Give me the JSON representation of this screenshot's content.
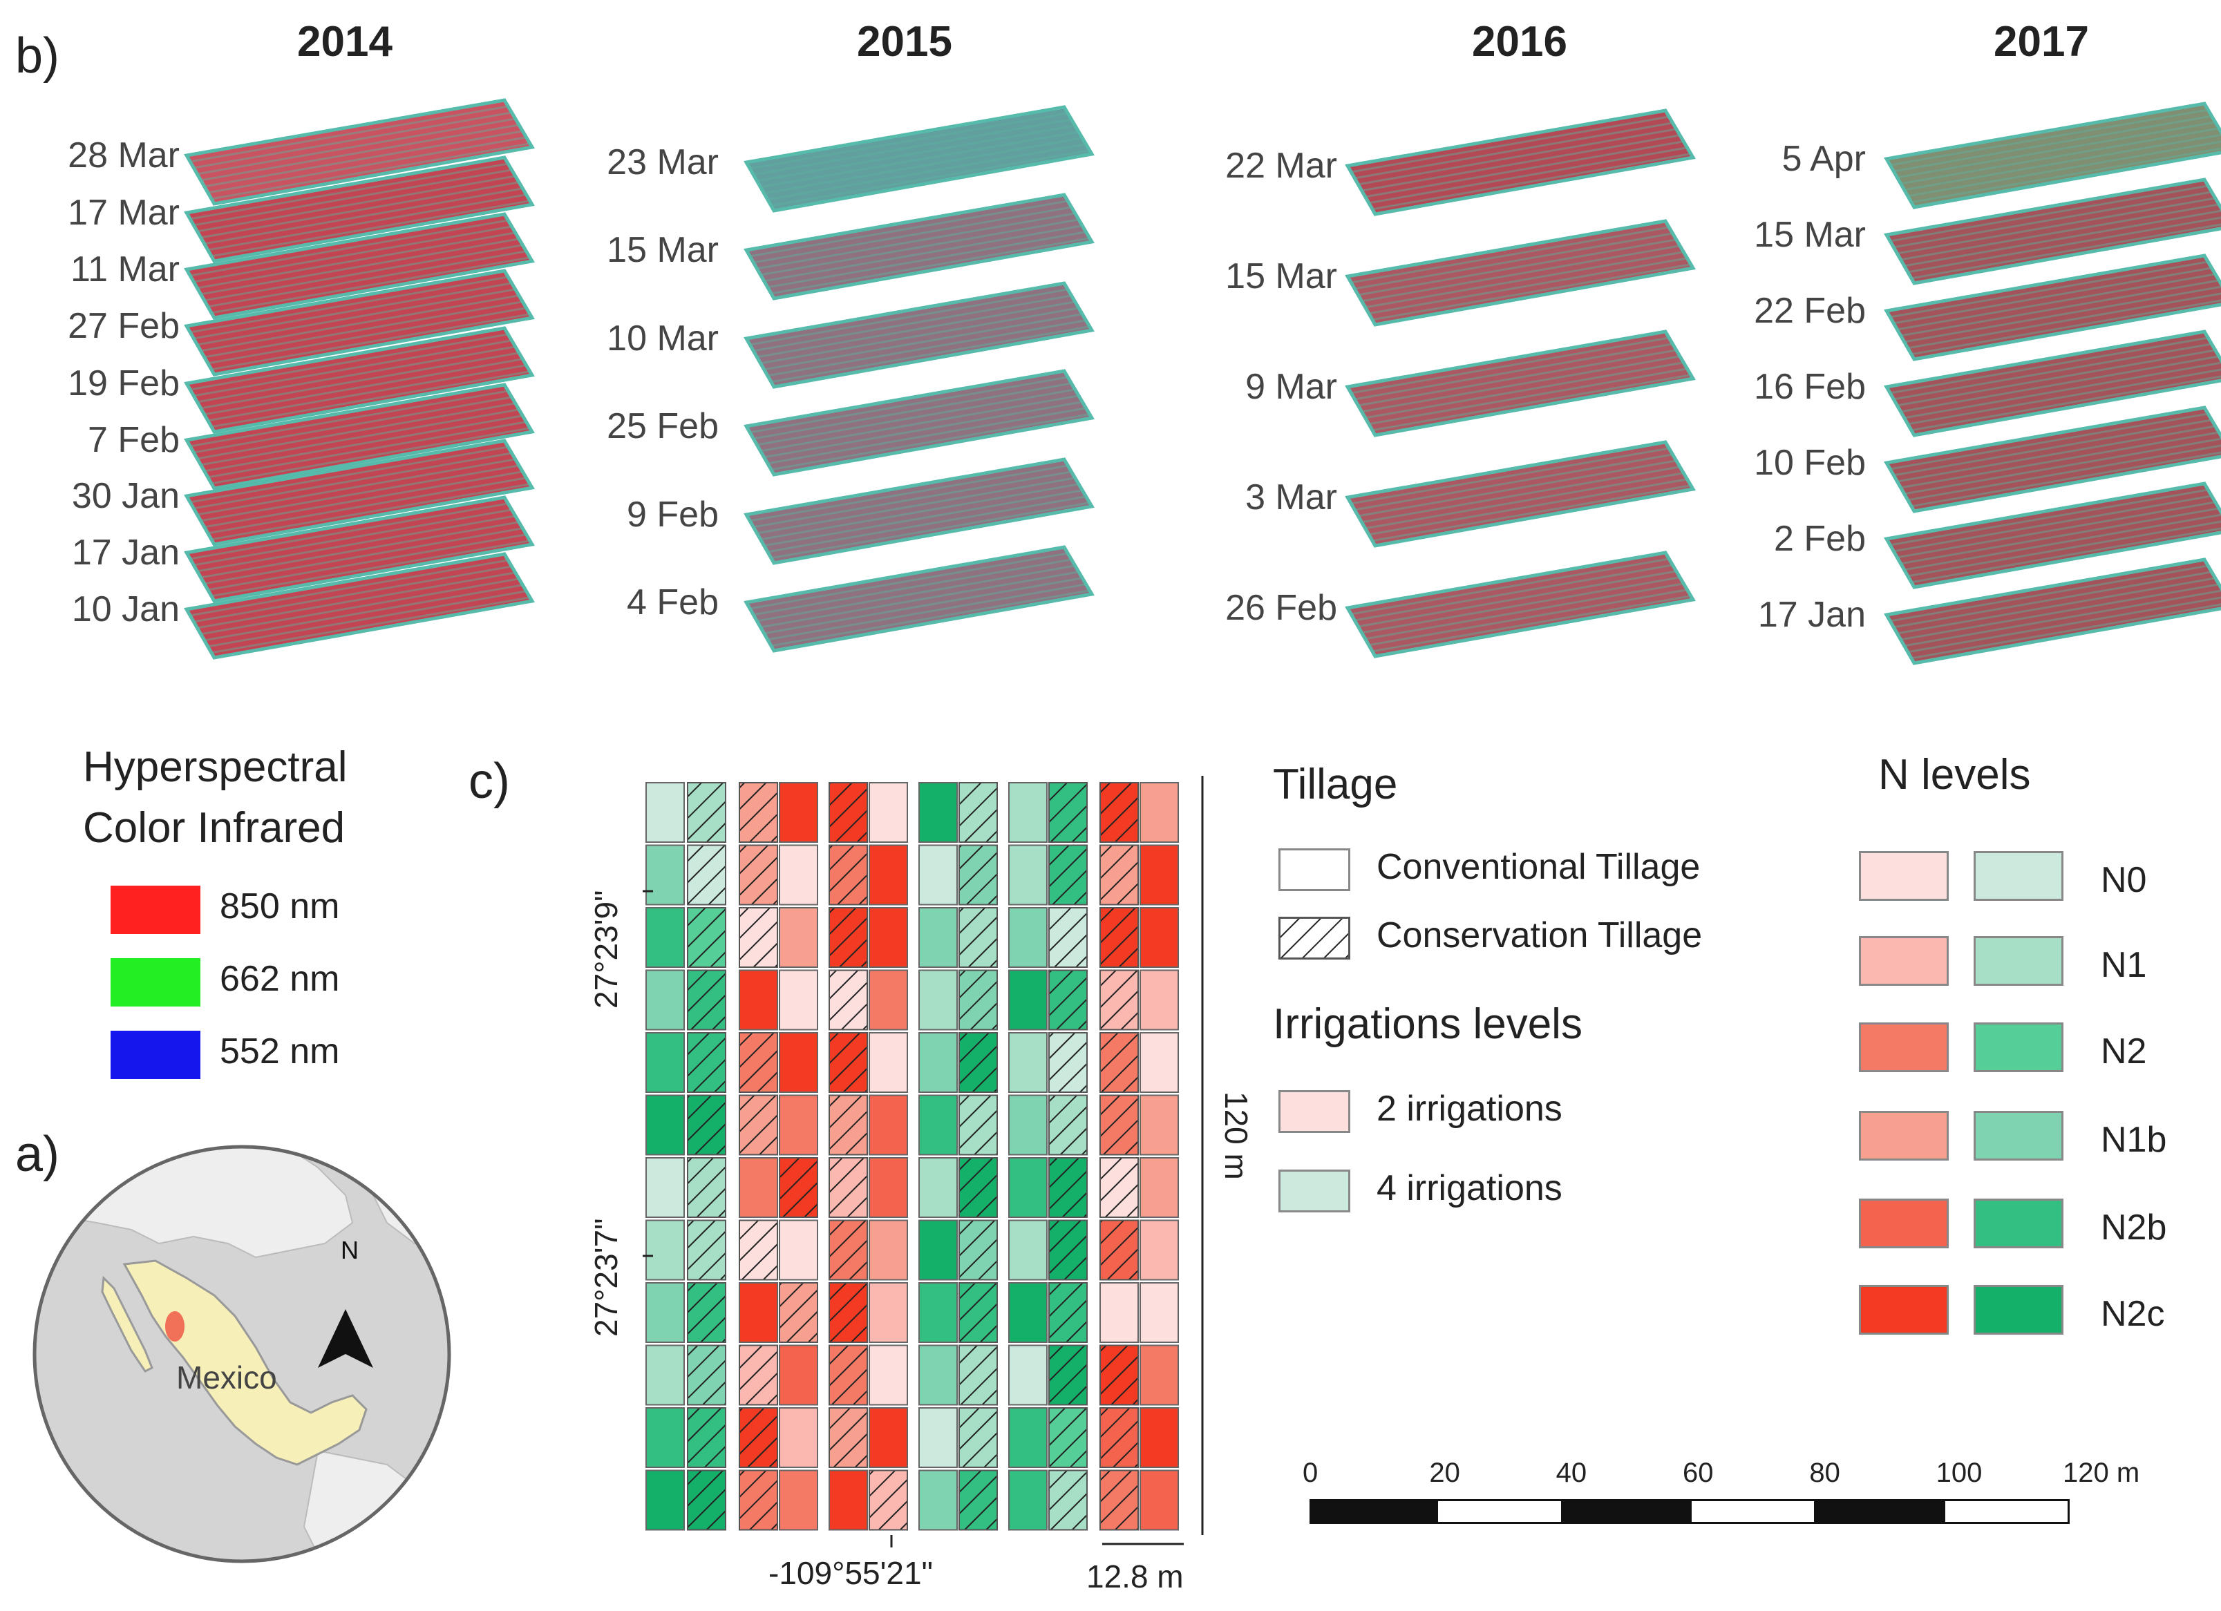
{
  "panels": {
    "a": "a)",
    "b": "b)",
    "c": "c)"
  },
  "years": [
    {
      "label": "2014",
      "dates": [
        "28 Mar",
        "17 Mar",
        "11 Mar",
        "27 Feb",
        "19 Feb",
        "7 Feb",
        "30 Jan",
        "17 Jan",
        "10 Jan"
      ]
    },
    {
      "label": "2015",
      "dates": [
        "23 Mar",
        "15 Mar",
        "10 Mar",
        "25 Feb",
        "9 Feb",
        "4 Feb"
      ]
    },
    {
      "label": "2016",
      "dates": [
        "22 Mar",
        "15 Mar",
        "9 Mar",
        "3 Mar",
        "26 Feb"
      ]
    },
    {
      "label": "2017",
      "dates": [
        "5 Apr",
        "15 Mar",
        "22 Feb",
        "16 Feb",
        "10 Feb",
        "2 Feb",
        "17 Jan"
      ]
    }
  ],
  "hyperspectral": {
    "title_line1": "Hyperspectral",
    "title_line2": "Color Infrared",
    "bands": [
      {
        "label": "850 nm",
        "color": "#ff2020"
      },
      {
        "label": "662 nm",
        "color": "#22ee22"
      },
      {
        "label": "552 nm",
        "color": "#1515ee"
      }
    ]
  },
  "map": {
    "country": "Mexico",
    "north": "N"
  },
  "plot": {
    "lat_top": "27°23'9\"",
    "lat_bottom": "27°23'7\"",
    "lon": "-109°55'21\"",
    "width_label": "12.8 m",
    "height_label": "120 m"
  },
  "tillage": {
    "title": "Tillage",
    "items": [
      {
        "label": "Conventional Tillage"
      },
      {
        "label": "Conservation Tillage"
      }
    ]
  },
  "irrigation": {
    "title": "Irrigations levels",
    "items": [
      {
        "label": "2 irrigations",
        "color": "#fde0de"
      },
      {
        "label": "4 irrigations",
        "color": "#cce9dd"
      }
    ]
  },
  "nlevels": {
    "title": "N levels",
    "items": [
      {
        "label": "N0",
        "red": "#fde0de",
        "green": "#cce9dd"
      },
      {
        "label": "N1",
        "red": "#fbb8b0",
        "green": "#a7dfc6"
      },
      {
        "label": "N2",
        "red": "#f57a66",
        "green": "#55cf97"
      },
      {
        "label": "N1b",
        "red": "#f8a090",
        "green": "#80d3b0"
      },
      {
        "label": "N2b",
        "red": "#f4634d",
        "green": "#34bf82"
      },
      {
        "label": "N2c",
        "red": "#f33a22",
        "green": "#14b06a"
      }
    ]
  },
  "scalebar": {
    "ticks": [
      "0",
      "20",
      "40",
      "60",
      "80",
      "100",
      "120 m"
    ]
  }
}
